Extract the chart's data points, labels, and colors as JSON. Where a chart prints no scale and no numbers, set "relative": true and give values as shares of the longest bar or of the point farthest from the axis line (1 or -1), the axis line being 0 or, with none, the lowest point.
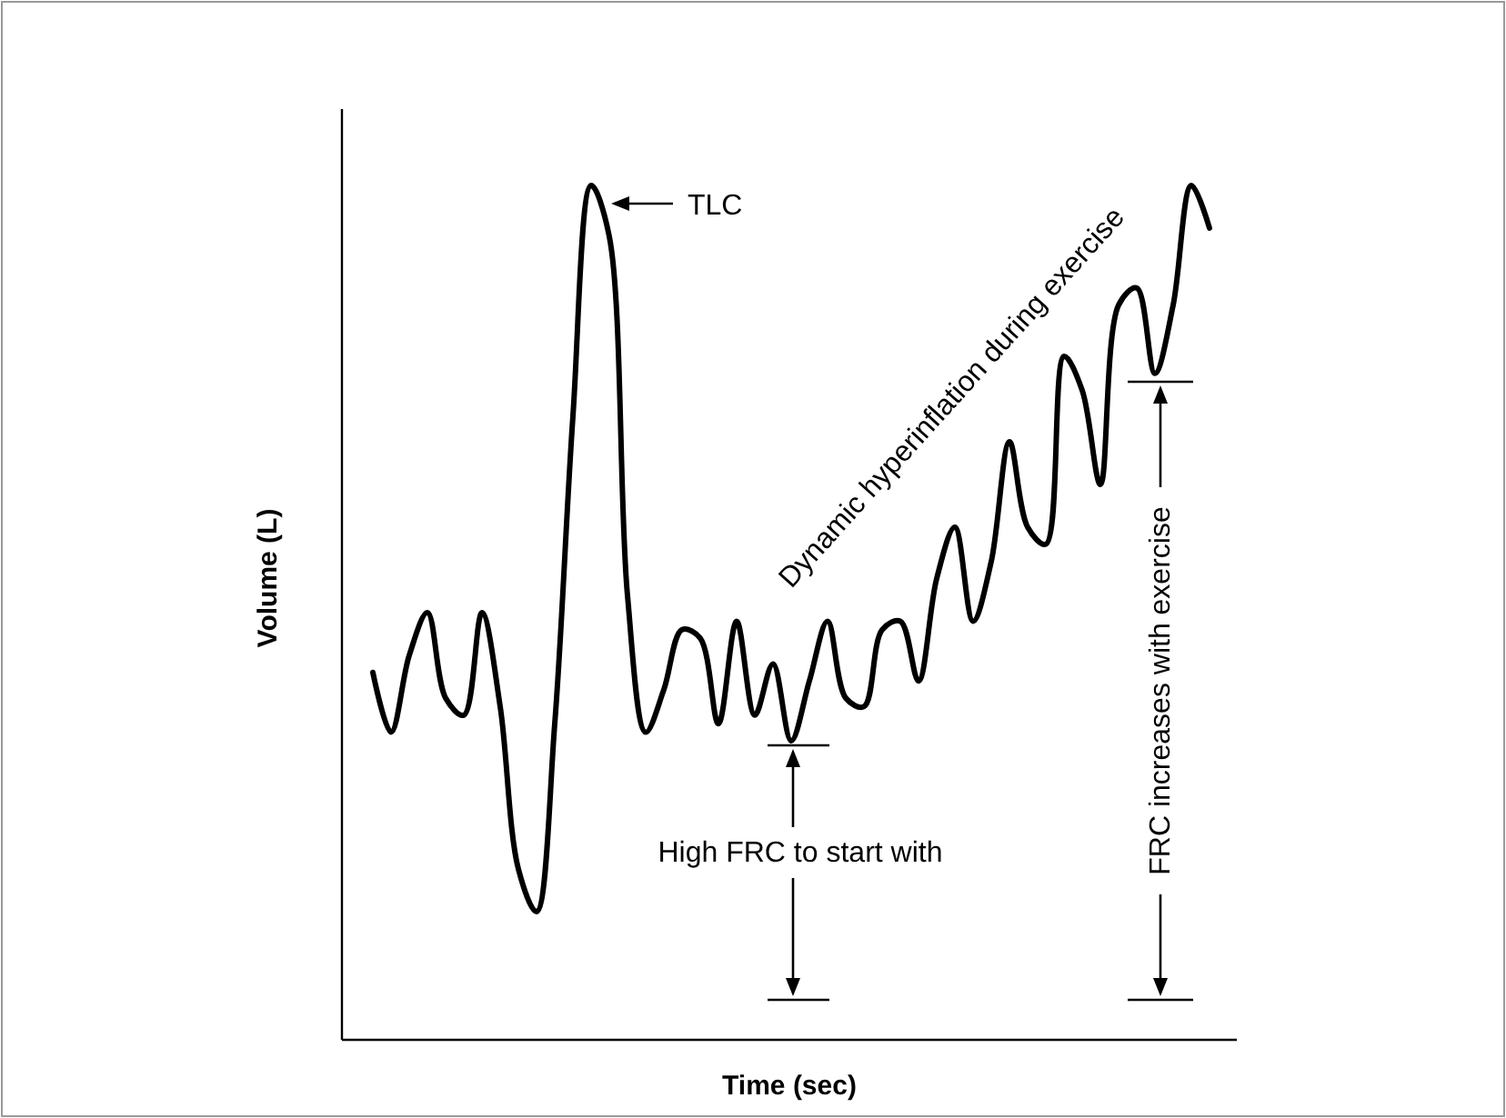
{
  "chart_data": {
    "type": "line",
    "relative": true,
    "xlabel": "Time (sec)",
    "ylabel": "Volume (L)",
    "color": "#000000",
    "categories": [
      null,
      null,
      null,
      null,
      null,
      null,
      null,
      null,
      null,
      null,
      null,
      null,
      null,
      null,
      null,
      null,
      null,
      null,
      null,
      null,
      null,
      null,
      null,
      null,
      null,
      null,
      null,
      null,
      null,
      null,
      null,
      null,
      null,
      null,
      null,
      null,
      null,
      null,
      null,
      null,
      null,
      null,
      null,
      null,
      null,
      null,
      null
    ],
    "values": [
      0.43,
      0.36,
      0.45,
      0.5,
      0.4,
      0.38,
      0.5,
      0.39,
      0.2,
      0.15,
      0.37,
      0.73,
      1,
      0.94,
      0.52,
      0.36,
      0.41,
      0.48,
      0.47,
      0.37,
      0.49,
      0.38,
      0.44,
      0.35,
      0.42,
      0.49,
      0.4,
      0.39,
      0.48,
      0.49,
      0.42,
      0.54,
      0.6,
      0.49,
      0.56,
      0.7,
      0.6,
      0.58,
      0.8,
      0.76,
      0.65,
      0.86,
      0.88,
      0.78,
      0.86,
      1,
      0.95
    ],
    "annotations": [
      "TLC",
      "Dynamic hyperinflation during exercise",
      "High FRC to start with",
      "FRC increases with exercise"
    ]
  }
}
